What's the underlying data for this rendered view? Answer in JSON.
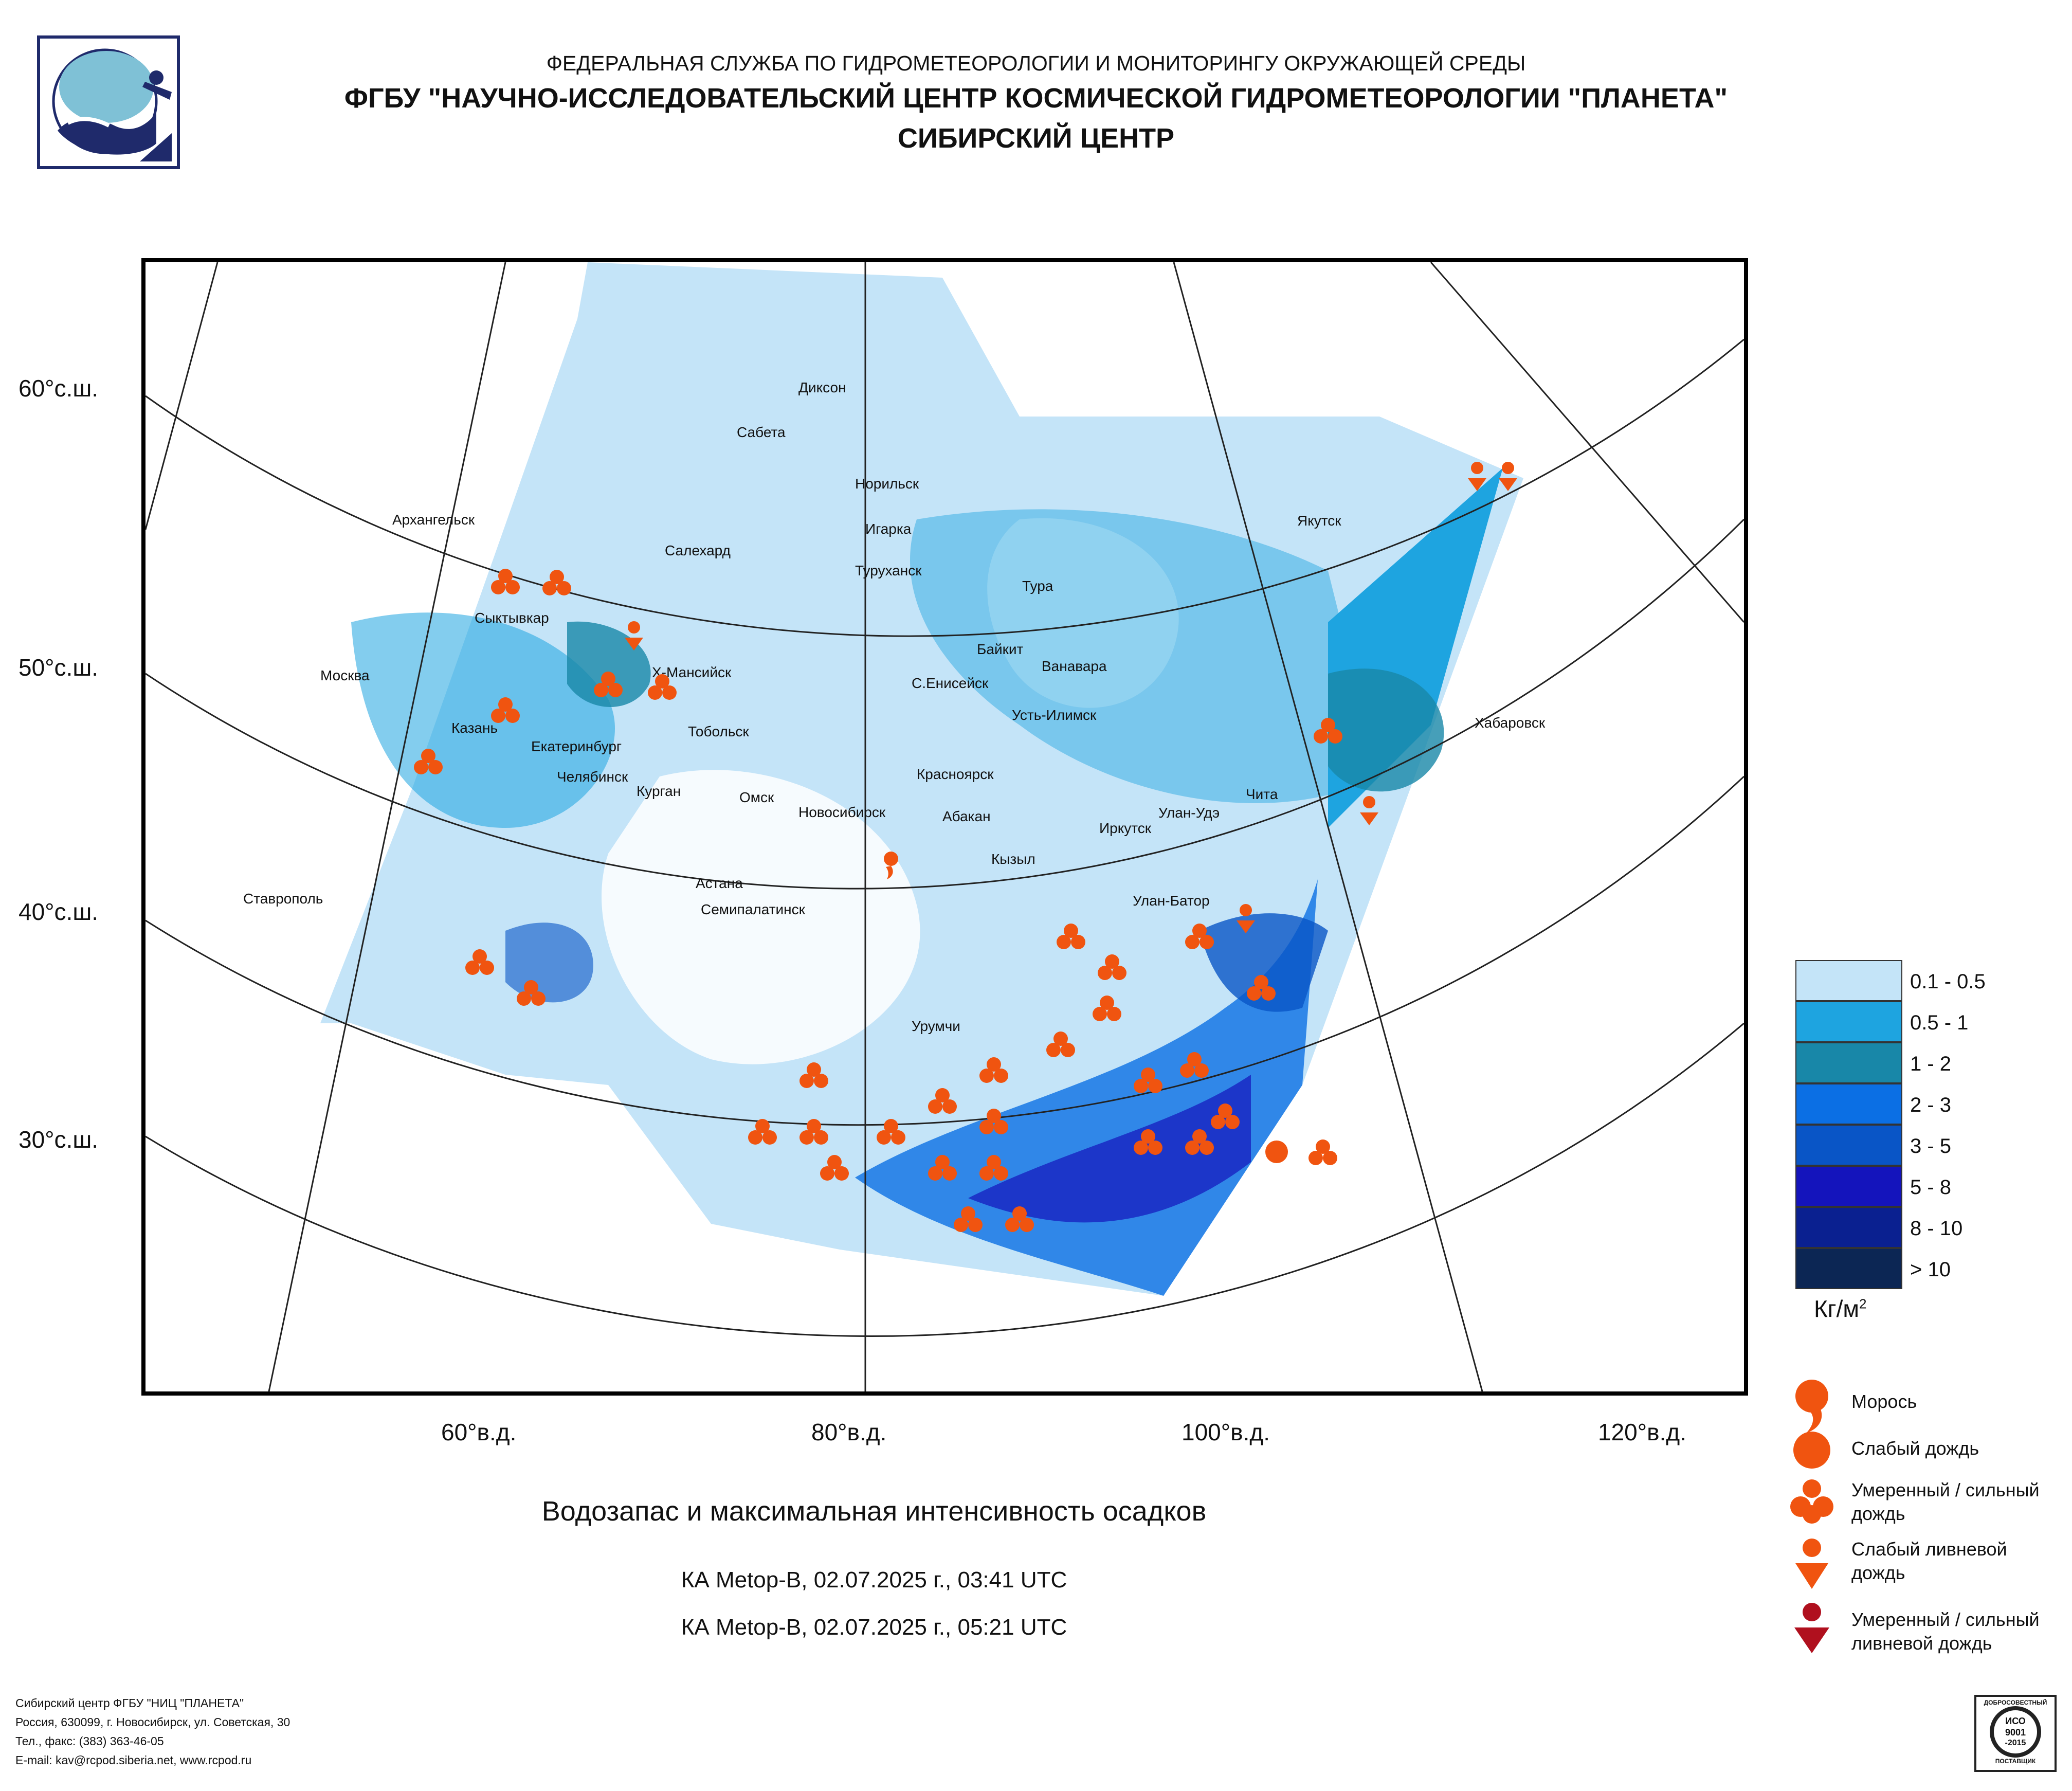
{
  "header": {
    "line1": "ФЕДЕРАЛЬНАЯ СЛУЖБА ПО ГИДРОМЕТЕОРОЛОГИИ И МОНИТОРИНГУ ОКРУЖАЮЩЕЙ СРЕДЫ",
    "line2": "ФГБУ \"НАУЧНО-ИССЛЕДОВАТЕЛЬСКИЙ ЦЕНТР КОСМИЧЕСКОЙ ГИДРОМЕТЕОРОЛОГИИ \"ПЛАНЕТА\"",
    "line3": "СИБИРСКИЙ ЦЕНТР"
  },
  "map": {
    "lat_labels": [
      "60°с.ш.",
      "50°с.ш.",
      "40°с.ш.",
      "30°с.ш."
    ],
    "lon_labels": [
      "60°в.д.",
      "80°в.д.",
      "100°в.д.",
      "120°в.д."
    ],
    "cities": [
      "Диксон",
      "Сабета",
      "Норильск",
      "Архангельск",
      "Салехард",
      "Игарка",
      "Туруханск",
      "Тура",
      "Якутск",
      "Сыктывкар",
      "Байкит",
      "Ванавара",
      "Москва",
      "Х-Мансийск",
      "С.Енисейск",
      "Усть-Илимск",
      "Хабаровск",
      "Казань",
      "Тобольск",
      "Екатеринбург",
      "Челябинск",
      "Курган",
      "Омск",
      "Новосибирск",
      "Красноярск",
      "Абакан",
      "Чита",
      "Улан-Удэ",
      "Иркутск",
      "Кызыл",
      "Астана",
      "Семипалатинск",
      "Улан-Батор",
      "Ставрополь",
      "Урумчи"
    ]
  },
  "legend": {
    "ranges": [
      "0.1 - 0.5",
      "0.5 - 1",
      "1 - 2",
      "2 - 3",
      "3 - 5",
      "5 - 8",
      "8 - 10",
      "> 10"
    ],
    "colors": [
      "#c4e4f8",
      "#1ea4e0",
      "#1887a8",
      "#0b6fe4",
      "#0955c6",
      "#1414bc",
      "#0a2090",
      "#0c2654"
    ],
    "unit_base": "Кг/м",
    "unit_exp": "2"
  },
  "symbols": {
    "drizzle": "Морось",
    "light_rain": "Слабый дождь",
    "moderate_rain_1": "Умеренный / сильный",
    "moderate_rain_2": "дождь",
    "light_shower_1": "Слабый ливневой",
    "light_shower_2": "дождь",
    "heavy_shower_1": "Умеренный / сильный",
    "heavy_shower_2": "ливневой дождь",
    "colors": {
      "orange": "#f05410",
      "dark_red": "#b0101e"
    }
  },
  "subtitle": "Водозапас и максимальная интенсивность осадков",
  "satellites": [
    "КА Metop-B, 02.07.2025 г., 03:41 UTC",
    "КА Metop-B, 02.07.2025 г., 05:21 UTC"
  ],
  "footer": {
    "line1": "Сибирский центр ФГБУ \"НИЦ \"ПЛАНЕТА\"",
    "line2": "Россия, 630099, г. Новосибирск, ул. Советская, 30",
    "line3": "Тел., факс: (383) 363-46-05",
    "line4": "E-mail: kav@rcpod.siberia.net, www.rcpod.ru"
  },
  "cert": {
    "top": "ДОБРОСОВЕСТНЫЙ",
    "iso": "ИСО",
    "num": "9001",
    "year": "-2015",
    "bottom": "ПОСТАВЩИК"
  }
}
